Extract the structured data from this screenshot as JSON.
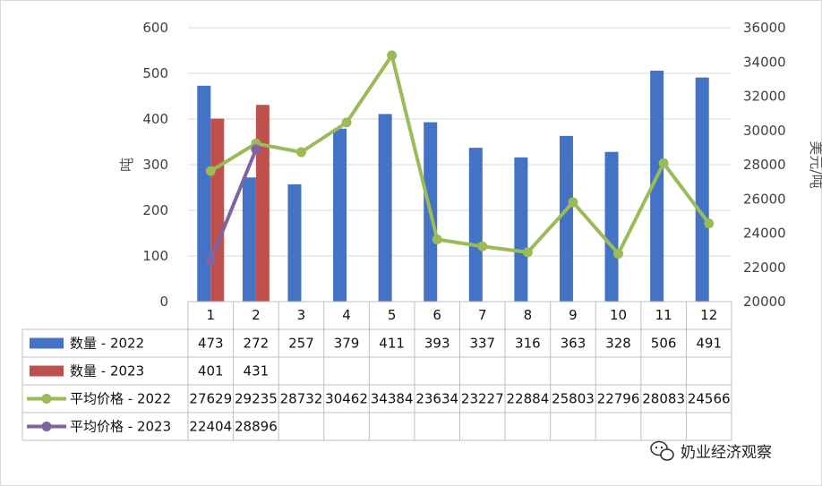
{
  "chart_data": {
    "type": "bar",
    "categories": [
      "1",
      "2",
      "3",
      "4",
      "5",
      "6",
      "7",
      "8",
      "9",
      "10",
      "11",
      "12"
    ],
    "y_left": {
      "label": "吨",
      "ticks": [
        "0",
        "100",
        "200",
        "300",
        "400",
        "500",
        "600"
      ],
      "range": [
        0,
        600
      ]
    },
    "y_right": {
      "label": "美元/吨",
      "ticks": [
        "20000",
        "22000",
        "24000",
        "26000",
        "28000",
        "30000",
        "32000",
        "34000",
        "36000"
      ],
      "range": [
        20000,
        36000
      ]
    },
    "grid": true,
    "data_table": true,
    "series": [
      {
        "name": "数量 - 2022",
        "kind": "bar",
        "axis": "left",
        "color": "#4472C4",
        "values": [
          473,
          272,
          257,
          379,
          411,
          393,
          337,
          316,
          363,
          328,
          506,
          491
        ],
        "labels": [
          "473",
          "272",
          "257",
          "379",
          "411",
          "393",
          "337",
          "316",
          "363",
          "328",
          "506",
          "491"
        ]
      },
      {
        "name": "数量 - 2023",
        "kind": "bar",
        "axis": "left",
        "color": "#C0504D",
        "values": [
          401,
          431,
          null,
          null,
          null,
          null,
          null,
          null,
          null,
          null,
          null,
          null
        ],
        "labels": [
          "401",
          "431",
          "",
          "",
          "",
          "",
          "",
          "",
          "",
          "",
          "",
          ""
        ]
      },
      {
        "name": "平均价格 - 2022",
        "kind": "line",
        "axis": "right",
        "color": "#9BBB59",
        "values": [
          27629,
          29235,
          28732,
          30462,
          34384,
          23634,
          23227,
          22884,
          25803,
          22796,
          28083,
          24566
        ],
        "labels": [
          "27629",
          "29235",
          "28732",
          "30462",
          "34384",
          "23634",
          "23227",
          "22884",
          "25803",
          "22796",
          "28083",
          "24566"
        ]
      },
      {
        "name": "平均价格 - 2023",
        "kind": "line",
        "axis": "right",
        "color": "#8064A2",
        "values": [
          22404,
          28896,
          null,
          null,
          null,
          null,
          null,
          null,
          null,
          null,
          null,
          null
        ],
        "labels": [
          "22404",
          "28896",
          "",
          "",
          "",
          "",
          "",
          "",
          "",
          "",
          "",
          ""
        ]
      }
    ]
  },
  "watermark": {
    "icon": "wechat-icon",
    "text": "奶业经济观察"
  }
}
